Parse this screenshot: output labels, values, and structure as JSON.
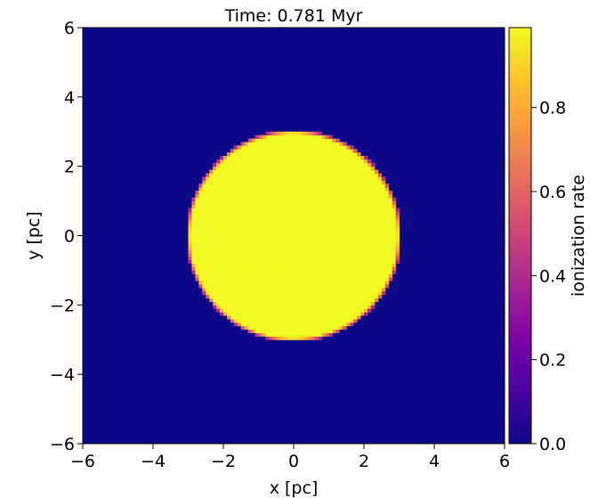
{
  "chart_data": {
    "type": "heatmap",
    "title": "Time: 0.781 Myr",
    "xlabel": "x [pc]",
    "ylabel": "y [pc]",
    "xlim": [
      -6,
      6
    ],
    "ylim": [
      -6,
      6
    ],
    "xticks": [
      -6,
      -4,
      -2,
      0,
      2,
      4,
      6
    ],
    "yticks": [
      -6,
      -4,
      -2,
      0,
      2,
      4,
      6
    ],
    "xtick_labels": [
      "−6",
      "−4",
      "−2",
      "0",
      "2",
      "4",
      "6"
    ],
    "ytick_labels": [
      "−6",
      "−4",
      "−2",
      "0",
      "2",
      "4",
      "6"
    ],
    "grid_cells": 120,
    "field": {
      "shape": "disk",
      "center": [
        0,
        0
      ],
      "radius": 3.05,
      "inside_value": 0.99,
      "outside_value": 0.0,
      "edge_width": 0.1
    },
    "colorbar": {
      "label": "ionization rate",
      "colormap": "plasma",
      "range": [
        0.0,
        0.99
      ],
      "ticks": [
        0.0,
        0.2,
        0.4,
        0.6,
        0.8
      ],
      "tick_labels": [
        "0.0",
        "0.2",
        "0.4",
        "0.6",
        "0.8"
      ]
    },
    "grid": false
  }
}
